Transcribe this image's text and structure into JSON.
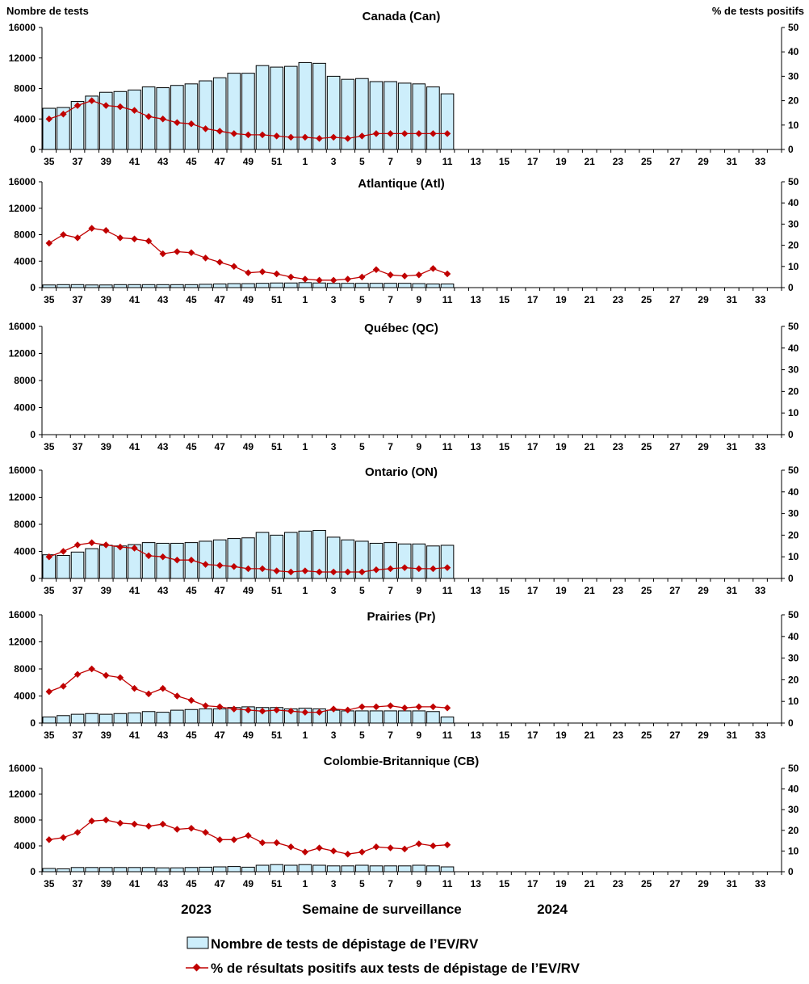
{
  "header": {
    "left_axis_title": "Nombre de tests",
    "right_axis_title": "% de tests positifs"
  },
  "footer": {
    "year_left": "2023",
    "xlabel": "Semaine de surveillance",
    "year_right": "2024"
  },
  "legend": {
    "bars_label": "Nombre de tests de dépistage de l’EV/RV",
    "line_label": "% de résultats positifs aux tests de dépistage de l’EV/RV"
  },
  "colors": {
    "bar_fill": "#cdeefb",
    "bar_stroke": "#000000",
    "line": "#c00000"
  },
  "chart_data": [
    {
      "type": "bar",
      "title": "Canada (Can)",
      "xlabel": "Semaine de surveillance",
      "ylabel": "Nombre de tests",
      "y2label": "% de tests positifs",
      "ylim": [
        0,
        16000
      ],
      "y2lim": [
        0,
        50
      ],
      "yticks": [
        0,
        4000,
        8000,
        12000,
        16000
      ],
      "y2ticks": [
        0,
        10,
        20,
        30,
        40,
        50
      ],
      "weeks": [
        "35",
        "36",
        "37",
        "38",
        "39",
        "40",
        "41",
        "42",
        "43",
        "44",
        "45",
        "46",
        "47",
        "48",
        "49",
        "50",
        "51",
        "52",
        "1",
        "2",
        "3",
        "4",
        "5",
        "6",
        "7",
        "8",
        "9",
        "10",
        "11",
        "12",
        "13",
        "14",
        "15",
        "16",
        "17",
        "18",
        "19",
        "20",
        "21",
        "22",
        "23",
        "24",
        "25",
        "26",
        "27",
        "28",
        "29",
        "30",
        "31",
        "32",
        "33",
        "34"
      ],
      "tick_labels": [
        "35",
        "37",
        "39",
        "41",
        "43",
        "45",
        "47",
        "49",
        "51",
        "1",
        "3",
        "5",
        "7",
        "9",
        "11",
        "13",
        "15",
        "17",
        "19",
        "21",
        "23",
        "25",
        "27",
        "29",
        "31",
        "33"
      ],
      "series": [
        {
          "name": "Nombre de tests de dépistage de l’EV/RV",
          "kind": "bar",
          "axis": "left",
          "values": [
            5400,
            5500,
            6300,
            7000,
            7500,
            7600,
            7800,
            8200,
            8100,
            8400,
            8600,
            9000,
            9400,
            10000,
            10000,
            11000,
            10800,
            10900,
            11400,
            11300,
            9600,
            9200,
            9300,
            8900,
            8900,
            8700,
            8600,
            8200,
            7300
          ]
        },
        {
          "name": "% de résultats positifs aux tests de dépistage de l’EV/RV",
          "kind": "line",
          "axis": "right",
          "values": [
            12.5,
            14.5,
            18,
            20,
            18,
            17.5,
            16,
            13.5,
            12.5,
            11,
            10.5,
            8.5,
            7.5,
            6.5,
            6,
            6,
            5.5,
            5,
            5,
            4.5,
            5,
            4.5,
            5.5,
            6.5,
            6.5,
            6.5,
            6.5,
            6.5,
            6.5
          ]
        }
      ]
    },
    {
      "type": "bar",
      "title": "Atlantique (Atl)",
      "ylim": [
        0,
        16000
      ],
      "y2lim": [
        0,
        50
      ],
      "yticks": [
        0,
        4000,
        8000,
        12000,
        16000
      ],
      "y2ticks": [
        0,
        10,
        20,
        30,
        40,
        50
      ],
      "tick_labels": [
        "35",
        "37",
        "39",
        "41",
        "43",
        "45",
        "47",
        "49",
        "51",
        "1",
        "3",
        "5",
        "7",
        "9",
        "11",
        "13",
        "15",
        "17",
        "19",
        "21",
        "23",
        "25",
        "27",
        "29",
        "31",
        "33"
      ],
      "series": [
        {
          "name": "Nombre de tests de dépistage de l’EV/RV",
          "kind": "bar",
          "axis": "left",
          "values": [
            400,
            450,
            450,
            400,
            400,
            450,
            450,
            450,
            450,
            450,
            450,
            500,
            550,
            600,
            600,
            650,
            700,
            700,
            750,
            700,
            650,
            650,
            650,
            650,
            650,
            650,
            600,
            550,
            550
          ]
        },
        {
          "name": "% de résultats positifs aux tests de dépistage de l’EV/RV",
          "kind": "line",
          "axis": "right",
          "values": [
            21,
            25,
            23.5,
            28,
            27,
            23.5,
            23,
            22,
            16,
            17,
            16.5,
            14,
            12,
            10,
            7,
            7.5,
            6.5,
            5,
            4,
            3.5,
            3.5,
            4,
            5,
            8.5,
            6,
            5.5,
            6,
            9,
            6.5
          ]
        }
      ]
    },
    {
      "type": "bar",
      "title": "Québec (QC)",
      "ylim": [
        0,
        16000
      ],
      "y2lim": [
        0,
        50
      ],
      "yticks": [
        0,
        4000,
        8000,
        12000,
        16000
      ],
      "y2ticks": [
        0,
        10,
        20,
        30,
        40,
        50
      ],
      "tick_labels": [
        "35",
        "37",
        "39",
        "41",
        "43",
        "45",
        "47",
        "49",
        "51",
        "1",
        "3",
        "5",
        "7",
        "9",
        "11",
        "13",
        "15",
        "17",
        "19",
        "21",
        "23",
        "25",
        "27",
        "29",
        "31",
        "33"
      ],
      "series": [
        {
          "name": "Nombre de tests de dépistage de l’EV/RV",
          "kind": "bar",
          "axis": "left",
          "values": []
        },
        {
          "name": "% de résultats positifs aux tests de dépistage de l’EV/RV",
          "kind": "line",
          "axis": "right",
          "values": []
        }
      ]
    },
    {
      "type": "bar",
      "title": "Ontario (ON)",
      "ylim": [
        0,
        16000
      ],
      "y2lim": [
        0,
        50
      ],
      "yticks": [
        0,
        4000,
        8000,
        12000,
        16000
      ],
      "y2ticks": [
        0,
        10,
        20,
        30,
        40,
        50
      ],
      "tick_labels": [
        "35",
        "37",
        "39",
        "41",
        "43",
        "45",
        "47",
        "49",
        "51",
        "1",
        "3",
        "5",
        "7",
        "9",
        "11",
        "13",
        "15",
        "17",
        "19",
        "21",
        "23",
        "25",
        "27",
        "29",
        "31",
        "33"
      ],
      "series": [
        {
          "name": "Nombre de tests de dépistage de l’EV/RV",
          "kind": "bar",
          "axis": "left",
          "values": [
            3500,
            3400,
            3900,
            4400,
            4900,
            4800,
            5000,
            5300,
            5200,
            5200,
            5300,
            5500,
            5700,
            5900,
            6000,
            6800,
            6400,
            6800,
            7000,
            7100,
            6100,
            5700,
            5500,
            5200,
            5300,
            5100,
            5100,
            4800,
            4900
          ]
        },
        {
          "name": "% de résultats positifs aux tests de dépistage de l’EV/RV",
          "kind": "line",
          "axis": "right",
          "values": [
            10,
            12.5,
            15.5,
            16.5,
            15.5,
            14.5,
            14,
            10.5,
            10,
            8.5,
            8.5,
            6.5,
            6,
            5.5,
            4.5,
            4.5,
            3.5,
            3,
            3.5,
            3,
            3,
            3,
            3,
            4,
            4.5,
            5,
            4.5,
            4.5,
            5
          ]
        }
      ]
    },
    {
      "type": "bar",
      "title": "Prairies (Pr)",
      "ylim": [
        0,
        16000
      ],
      "y2lim": [
        0,
        50
      ],
      "yticks": [
        0,
        4000,
        8000,
        12000,
        16000
      ],
      "y2ticks": [
        0,
        10,
        20,
        30,
        40,
        50
      ],
      "tick_labels": [
        "35",
        "37",
        "39",
        "41",
        "43",
        "45",
        "47",
        "49",
        "51",
        "1",
        "3",
        "5",
        "7",
        "9",
        "11",
        "13",
        "15",
        "17",
        "19",
        "21",
        "23",
        "25",
        "27",
        "29",
        "31",
        "33"
      ],
      "series": [
        {
          "name": "Nombre de tests de dépistage de l’EV/RV",
          "kind": "bar",
          "axis": "left",
          "values": [
            900,
            1100,
            1300,
            1400,
            1300,
            1400,
            1500,
            1700,
            1600,
            1900,
            2000,
            2100,
            2100,
            2300,
            2400,
            2300,
            2300,
            2100,
            2200,
            2100,
            1900,
            1800,
            1800,
            1800,
            1800,
            1800,
            1800,
            1700,
            900
          ]
        },
        {
          "name": "% de résultats positifs aux tests de dépistage de l’EV/RV",
          "kind": "line",
          "axis": "right",
          "values": [
            14.5,
            17,
            22.5,
            25,
            22,
            21,
            16,
            13.5,
            16,
            12.5,
            10.5,
            8,
            7.5,
            6.5,
            6,
            5.5,
            6,
            5.5,
            5,
            5,
            6.5,
            6,
            7.5,
            7.5,
            8,
            7,
            7.5,
            7.5,
            7
          ]
        }
      ]
    },
    {
      "type": "bar",
      "title": "Colombie-Britannique (CB)",
      "ylim": [
        0,
        16000
      ],
      "y2lim": [
        0,
        50
      ],
      "yticks": [
        0,
        4000,
        8000,
        12000,
        16000
      ],
      "y2ticks": [
        0,
        10,
        20,
        30,
        40,
        50
      ],
      "tick_labels": [
        "35",
        "37",
        "39",
        "41",
        "43",
        "45",
        "47",
        "49",
        "51",
        "1",
        "3",
        "5",
        "7",
        "9",
        "11",
        "13",
        "15",
        "17",
        "19",
        "21",
        "23",
        "25",
        "27",
        "29",
        "31",
        "33"
      ],
      "series": [
        {
          "name": "Nombre de tests de dépistage de l’EV/RV",
          "kind": "bar",
          "axis": "left",
          "values": [
            500,
            450,
            650,
            650,
            650,
            650,
            650,
            650,
            600,
            600,
            650,
            700,
            750,
            800,
            700,
            1000,
            1100,
            1000,
            1100,
            1000,
            900,
            900,
            1000,
            900,
            900,
            900,
            1000,
            900,
            750
          ]
        },
        {
          "name": "% de résultats positifs aux tests de dépistage de l’EV/RV",
          "kind": "line",
          "axis": "right",
          "values": [
            15.5,
            16.5,
            19,
            24.5,
            25,
            23.5,
            23,
            22,
            23,
            20.5,
            21,
            19,
            15.5,
            15.5,
            17.5,
            14,
            14,
            12,
            9.5,
            11.5,
            10,
            8.5,
            9.5,
            12,
            11.5,
            11,
            13.5,
            12.5,
            13
          ]
        }
      ]
    }
  ]
}
